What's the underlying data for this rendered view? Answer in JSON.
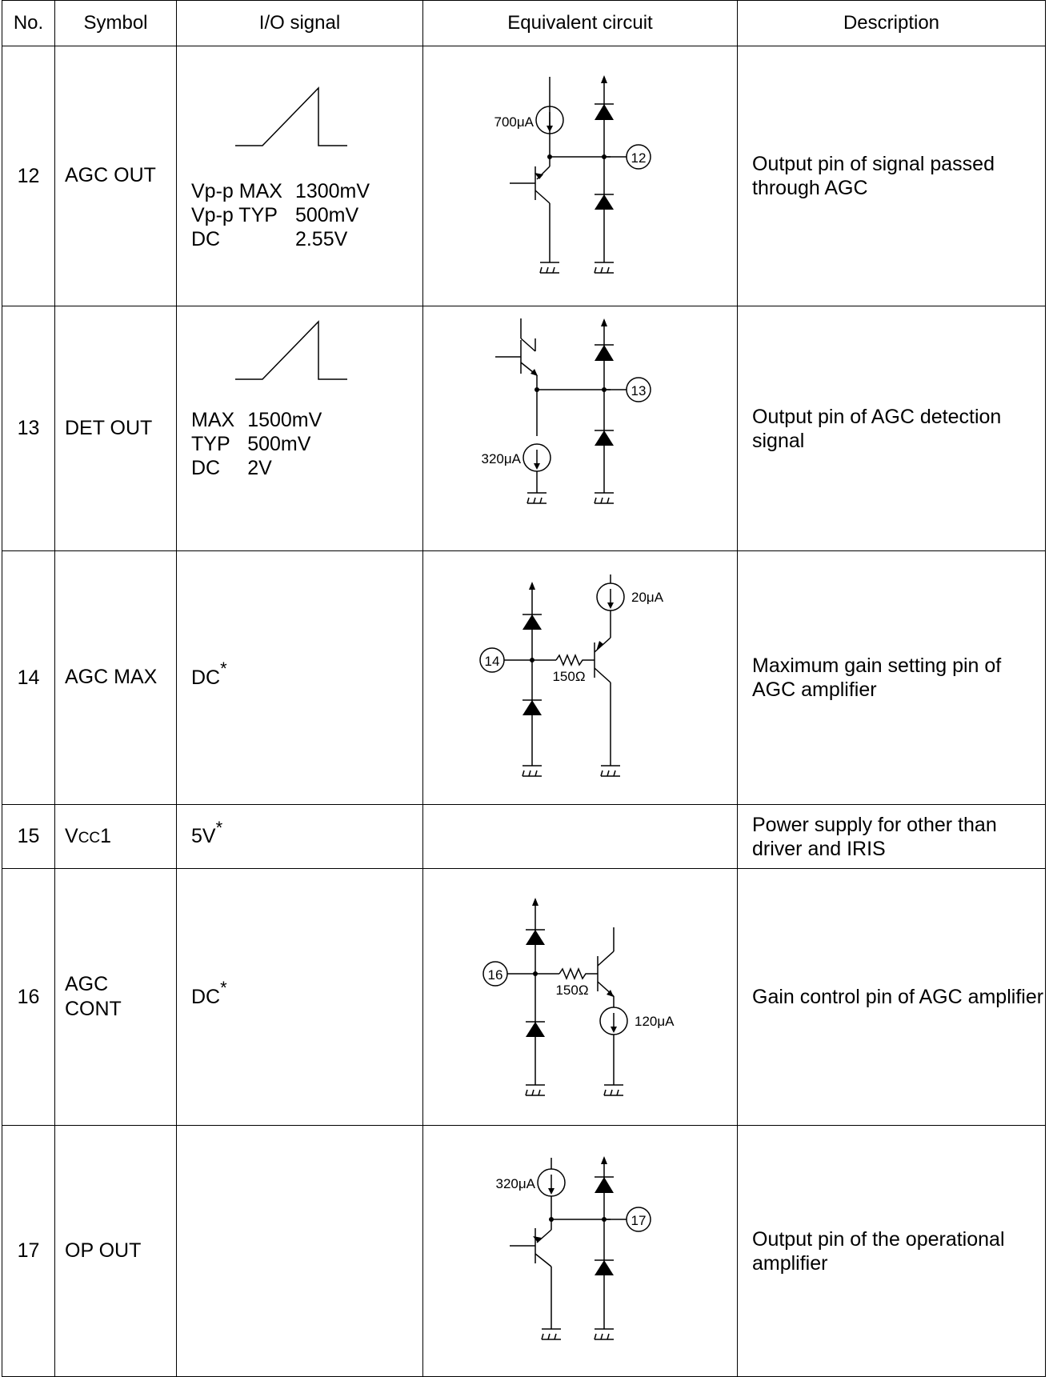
{
  "header": {
    "no": "No.",
    "symbol": "Symbol",
    "io": "I/O signal",
    "circuit": "Equivalent circuit",
    "desc": "Description"
  },
  "rows": [
    {
      "no": "12",
      "symbol": "AGC OUT",
      "io_values": [
        [
          "Vp-p MAX",
          "1300mV"
        ],
        [
          "Vp-p TYP",
          "500mV"
        ],
        [
          "DC",
          "2.55V"
        ]
      ],
      "circuit": {
        "current": "700μA",
        "pin": "12"
      },
      "desc": "Output pin of signal passed through AGC"
    },
    {
      "no": "13",
      "symbol": "DET OUT",
      "io_values": [
        [
          "MAX",
          "1500mV"
        ],
        [
          "TYP",
          "500mV"
        ],
        [
          "DC",
          "2V"
        ]
      ],
      "circuit": {
        "current": "320μA",
        "pin": "13"
      },
      "desc": "Output pin of AGC detection signal"
    },
    {
      "no": "14",
      "symbol": "AGC MAX",
      "io": "DC",
      "io_mark": "*",
      "circuit": {
        "pin": "14",
        "resistor": "150Ω",
        "current": "20μA"
      },
      "desc": "Maximum gain setting pin of AGC amplifier"
    },
    {
      "no": "15",
      "symbol_main": "V",
      "symbol_sub": "CC",
      "symbol_suffix": "1",
      "io": "5V",
      "io_mark": "*",
      "desc": "Power supply for other than driver and IRIS"
    },
    {
      "no": "16",
      "symbol_l1": "AGC",
      "symbol_l2": "CONT",
      "io": "DC",
      "io_mark": "*",
      "circuit": {
        "pin": "16",
        "resistor": "150Ω",
        "current": "120μA"
      },
      "desc": "Gain control pin of AGC amplifier"
    },
    {
      "no": "17",
      "symbol": "OP OUT",
      "circuit": {
        "current": "320μA",
        "pin": "17"
      },
      "desc": "Output pin of the operational amplifier"
    }
  ]
}
